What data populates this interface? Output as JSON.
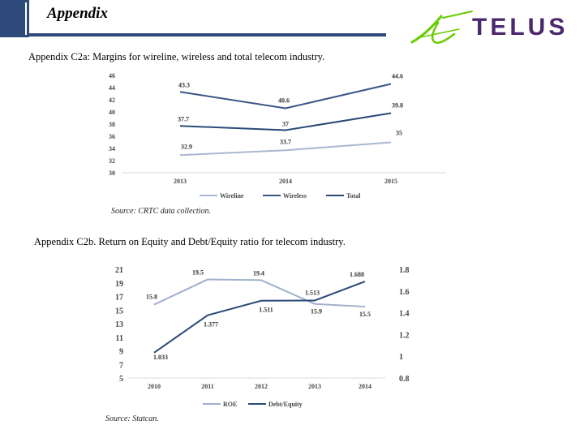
{
  "header": {
    "title": "Appendix"
  },
  "logo": {
    "text": "TELUS",
    "colors": {
      "wordmark": "#4b286d",
      "swoosh": "#66cc00"
    }
  },
  "colors": {
    "wireline": "#a9b7cf",
    "wireless": "#3a5686",
    "total": "#2b4a78",
    "roe": "#9fb0cc",
    "debt_equity": "#2b4a78",
    "grid": "#d9d9d9",
    "header_bar": "#2d4a7a"
  },
  "chart_a": {
    "caption": "Appendix C2a: Margins for wireline, wireless and total telecom industry.",
    "source": "Source: CRTC data collection."
  },
  "chart_b": {
    "caption": "Appendix C2b.  Return on Equity and Debt/Equity ratio for telecom industry.",
    "source": "Source: Statcan."
  },
  "chart_data": [
    {
      "type": "line",
      "categories": [
        "2013",
        "2014",
        "2015"
      ],
      "series": [
        {
          "name": "Wireline",
          "values": [
            32.9,
            33.7,
            35
          ],
          "labels": [
            "32.9",
            "33.7",
            "35"
          ]
        },
        {
          "name": "Wireless",
          "values": [
            43.3,
            40.6,
            44.6
          ],
          "labels": [
            "43.3",
            "40.6",
            "44.6"
          ]
        },
        {
          "name": "Total",
          "values": [
            37.7,
            37,
            39.8
          ],
          "labels": [
            "37.7",
            "37",
            "39.8"
          ]
        }
      ],
      "ylim": [
        30,
        46
      ],
      "yticks": [
        "30",
        "32",
        "34",
        "36",
        "38",
        "40",
        "42",
        "44",
        "46"
      ],
      "legend": "bottom"
    },
    {
      "type": "line",
      "categories": [
        "2010",
        "2011",
        "2012",
        "2013",
        "2014"
      ],
      "series": [
        {
          "name": "ROE",
          "axis": "left",
          "values": [
            15.8,
            19.5,
            19.4,
            15.9,
            15.5
          ],
          "labels": [
            "15.8",
            "19.5",
            "19.4",
            "15.9",
            "15.5"
          ]
        },
        {
          "name": "Debt/Equity",
          "axis": "right",
          "values": [
            1.033,
            1.377,
            1.511,
            1.513,
            1.688
          ],
          "labels": [
            "1.033",
            "1.377",
            "1.511",
            "1.513",
            "1.688"
          ]
        }
      ],
      "ylim_left": [
        5,
        21
      ],
      "yticks_left": [
        "5",
        "7",
        "9",
        "11",
        "13",
        "15",
        "17",
        "19",
        "21"
      ],
      "ylim_right": [
        0.8,
        1.8
      ],
      "yticks_right": [
        "0.8",
        "1",
        "1.2",
        "1.4",
        "1.6",
        "1.8"
      ],
      "legend": "bottom"
    }
  ]
}
